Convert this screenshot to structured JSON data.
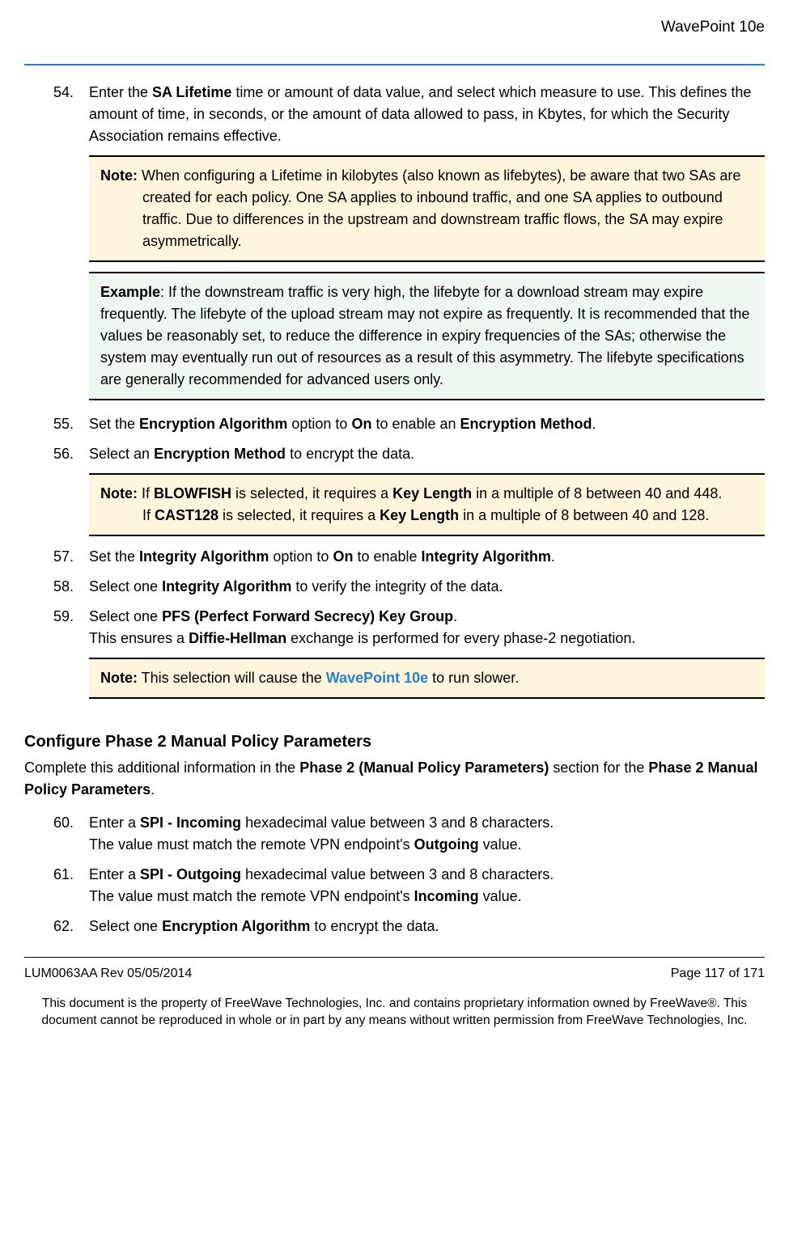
{
  "header": {
    "product": "WavePoint 10e"
  },
  "items": {
    "i54": {
      "num": "54.",
      "text_pre": "Enter the ",
      "b1": "SA Lifetime",
      "text_post": " time or amount of data value, and select which measure to use. This defines the amount of time, in seconds, or the amount of data allowed to pass, in Kbytes, for which the Security Association remains effective."
    },
    "note54": {
      "label": "Note:",
      "text": " When configuring a Lifetime in kilobytes (also known as lifebytes), be aware that two SAs are created for each policy. One SA applies to inbound traffic, and one SA applies to outbound traffic. Due to differences in the upstream and downstream traffic flows, the SA may expire asymmetrically."
    },
    "example54": {
      "label": "Example",
      "text": ": If the downstream traffic is very high, the lifebyte for a download stream may expire frequently. The lifebyte of the upload stream may not expire as frequently. It is recommended that the values be reasonably set, to reduce the difference in expiry frequencies of the SAs; otherwise the system may eventually run out of resources as a result of this asymmetry. The lifebyte specifications are generally recommended for advanced users only."
    },
    "i55": {
      "num": "55.",
      "p1": "Set the ",
      "b1": "Encryption Algorithm",
      "p2": " option to ",
      "b2": "On",
      "p3": " to enable an ",
      "b3": "Encryption Method",
      "p4": "."
    },
    "i56": {
      "num": "56.",
      "p1": "Select an ",
      "b1": "Encryption Method",
      "p2": " to encrypt the data."
    },
    "note56": {
      "label": "Note:",
      "l1a": " If ",
      "l1b": "BLOWFISH",
      "l1c": " is selected, it requires a ",
      "l1d": "Key Length",
      "l1e": " in a multiple of 8 between 40 and 448.",
      "l2a": "If ",
      "l2b": "CAST128",
      "l2c": " is selected, it requires a ",
      "l2d": "Key Length",
      "l2e": " in a multiple of 8 between 40 and 128."
    },
    "i57": {
      "num": "57.",
      "p1": "Set the ",
      "b1": "Integrity Algorithm",
      "p2": " option to ",
      "b2": "On",
      "p3": " to enable ",
      "b3": "Integrity Algorithm",
      "p4": "."
    },
    "i58": {
      "num": "58.",
      "p1": "Select one ",
      "b1": "Integrity Algorithm",
      "p2": " to verify the integrity of the data."
    },
    "i59": {
      "num": "59.",
      "p1": "Select one ",
      "b1": "PFS (Perfect Forward Secrecy) Key Group",
      "p2": ".",
      "l2a": "This ensures a ",
      "l2b": "Diffie-Hellman",
      "l2c": " exchange is performed for every phase-2 negotiation."
    },
    "note59": {
      "label": "Note:",
      "p1": " This selection will cause the ",
      "link": "WavePoint 10e",
      "p2": " to run slower."
    },
    "section2": {
      "heading": "Configure Phase 2 Manual Policy Parameters",
      "intro_p1": "Complete this additional information in the ",
      "intro_b1": "Phase 2 (Manual Policy Parameters)",
      "intro_p2": " section for the ",
      "intro_b2": "Phase 2 Manual Policy Parameters",
      "intro_p3": "."
    },
    "i60": {
      "num": "60.",
      "p1": "Enter a ",
      "b1": "SPI - Incoming",
      "p2": " hexadecimal value between 3 and 8 characters.",
      "l2a": "The value must match the remote VPN endpoint's ",
      "l2b": "Outgoing",
      "l2c": " value."
    },
    "i61": {
      "num": "61.",
      "p1": "Enter a ",
      "b1": "SPI - Outgoing",
      "p2": " hexadecimal value between 3 and 8 characters.",
      "l2a": "The value must match the remote VPN endpoint's ",
      "l2b": "Incoming",
      "l2c": " value."
    },
    "i62": {
      "num": "62.",
      "p1": "Select one ",
      "b1": "Encryption Algorithm",
      "p2": " to encrypt the data."
    }
  },
  "footer": {
    "left": "LUM0063AA Rev 05/05/2014",
    "right": "Page 117 of 171",
    "legal": "This document is the property of FreeWave Technologies, Inc. and contains proprietary information owned by FreeWave®. This document cannot be reproduced in whole or in part by any means without written permission from FreeWave Technologies, Inc."
  },
  "colors": {
    "accent_blue": "#2a7fc9",
    "note_bg": "#fdf6dc",
    "example_bg": "#eef8ee"
  }
}
